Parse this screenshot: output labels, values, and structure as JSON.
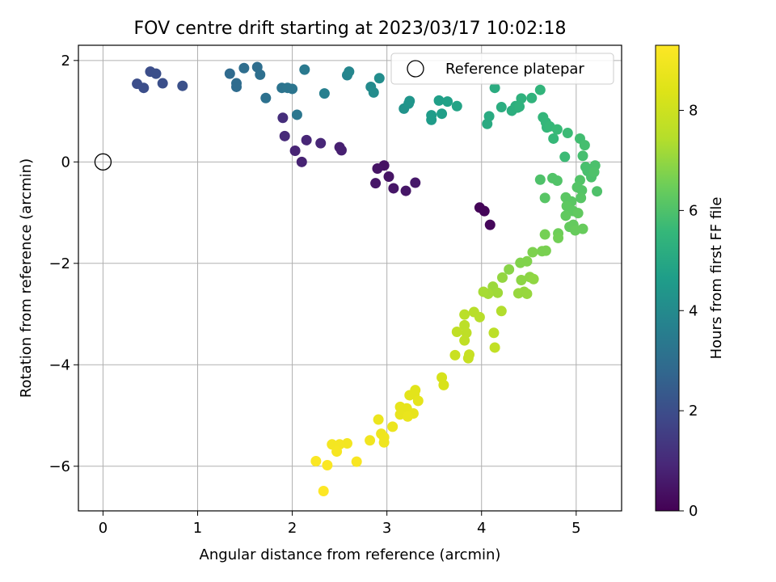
{
  "chart_data": {
    "type": "scatter",
    "title": "FOV centre drift starting at 2023/03/17 10:02:18",
    "xlabel": "Angular distance from reference (arcmin)",
    "ylabel": "Rotation from reference (arcmin)",
    "xlim": [
      -0.26,
      5.48
    ],
    "ylim": [
      -6.88,
      2.3
    ],
    "xticks": [
      0,
      1,
      2,
      3,
      4,
      5
    ],
    "yticks": [
      -6,
      -4,
      -2,
      0,
      2
    ],
    "grid": true,
    "legend": {
      "position": "top-right",
      "entries": [
        "Reference platepar"
      ]
    },
    "reference": {
      "x": 0,
      "y": 0
    },
    "colorbar": {
      "label": "Hours from first FF file",
      "range": [
        0,
        9.3
      ],
      "ticks": [
        0,
        2,
        4,
        6,
        8
      ],
      "colormap": "viridis"
    },
    "points": [
      {
        "x": 3.98,
        "y": -0.9,
        "h": 0.1
      },
      {
        "x": 4.03,
        "y": -0.97,
        "h": 0.1
      },
      {
        "x": 4.09,
        "y": -1.24,
        "h": 0.15
      },
      {
        "x": 2.97,
        "y": -0.07,
        "h": 0.4
      },
      {
        "x": 2.9,
        "y": -0.13,
        "h": 0.45
      },
      {
        "x": 3.02,
        "y": -0.29,
        "h": 0.45
      },
      {
        "x": 2.88,
        "y": -0.42,
        "h": 0.5
      },
      {
        "x": 3.07,
        "y": -0.52,
        "h": 0.5
      },
      {
        "x": 3.2,
        "y": -0.57,
        "h": 0.5
      },
      {
        "x": 3.3,
        "y": -0.41,
        "h": 0.55
      },
      {
        "x": 2.5,
        "y": 0.29,
        "h": 0.75
      },
      {
        "x": 2.52,
        "y": 0.23,
        "h": 0.75
      },
      {
        "x": 2.1,
        "y": 0.0,
        "h": 0.8
      },
      {
        "x": 2.03,
        "y": 0.22,
        "h": 0.85
      },
      {
        "x": 2.15,
        "y": 0.43,
        "h": 0.9
      },
      {
        "x": 2.3,
        "y": 0.37,
        "h": 0.9
      },
      {
        "x": 1.92,
        "y": 0.51,
        "h": 1.0
      },
      {
        "x": 1.9,
        "y": 0.87,
        "h": 1.1
      },
      {
        "x": 0.36,
        "y": 1.54,
        "h": 2.0
      },
      {
        "x": 0.43,
        "y": 1.46,
        "h": 2.0
      },
      {
        "x": 0.5,
        "y": 1.78,
        "h": 2.0
      },
      {
        "x": 0.56,
        "y": 1.74,
        "h": 2.05
      },
      {
        "x": 0.63,
        "y": 1.55,
        "h": 2.05
      },
      {
        "x": 0.84,
        "y": 1.5,
        "h": 2.1
      },
      {
        "x": 1.34,
        "y": 1.74,
        "h": 2.9
      },
      {
        "x": 1.41,
        "y": 1.55,
        "h": 2.95
      },
      {
        "x": 1.41,
        "y": 1.48,
        "h": 2.95
      },
      {
        "x": 1.49,
        "y": 1.85,
        "h": 3.0
      },
      {
        "x": 1.63,
        "y": 1.87,
        "h": 3.0
      },
      {
        "x": 1.66,
        "y": 1.72,
        "h": 3.05
      },
      {
        "x": 1.72,
        "y": 1.26,
        "h": 3.1
      },
      {
        "x": 1.89,
        "y": 1.46,
        "h": 3.2
      },
      {
        "x": 1.95,
        "y": 1.46,
        "h": 3.25
      },
      {
        "x": 2.0,
        "y": 1.44,
        "h": 3.25
      },
      {
        "x": 2.05,
        "y": 0.93,
        "h": 3.3
      },
      {
        "x": 2.13,
        "y": 1.82,
        "h": 3.4
      },
      {
        "x": 2.34,
        "y": 1.35,
        "h": 3.6
      },
      {
        "x": 2.58,
        "y": 1.71,
        "h": 3.8
      },
      {
        "x": 2.6,
        "y": 1.78,
        "h": 3.85
      },
      {
        "x": 2.83,
        "y": 1.48,
        "h": 4.0
      },
      {
        "x": 2.86,
        "y": 1.37,
        "h": 4.05
      },
      {
        "x": 2.92,
        "y": 1.65,
        "h": 4.1
      },
      {
        "x": 3.18,
        "y": 1.05,
        "h": 4.3
      },
      {
        "x": 3.23,
        "y": 1.15,
        "h": 4.35
      },
      {
        "x": 3.24,
        "y": 1.2,
        "h": 4.35
      },
      {
        "x": 3.47,
        "y": 0.83,
        "h": 4.6
      },
      {
        "x": 3.47,
        "y": 0.92,
        "h": 4.6
      },
      {
        "x": 3.55,
        "y": 1.21,
        "h": 4.7
      },
      {
        "x": 3.58,
        "y": 0.95,
        "h": 4.7
      },
      {
        "x": 3.64,
        "y": 1.19,
        "h": 4.75
      },
      {
        "x": 3.74,
        "y": 1.1,
        "h": 4.85
      },
      {
        "x": 4.06,
        "y": 0.75,
        "h": 5.1
      },
      {
        "x": 4.08,
        "y": 0.9,
        "h": 5.1
      },
      {
        "x": 4.14,
        "y": 1.46,
        "h": 5.15
      },
      {
        "x": 4.21,
        "y": 1.08,
        "h": 5.2
      },
      {
        "x": 4.32,
        "y": 1.01,
        "h": 5.25
      },
      {
        "x": 4.36,
        "y": 1.1,
        "h": 5.3
      },
      {
        "x": 4.38,
        "y": 1.07,
        "h": 5.3
      },
      {
        "x": 4.4,
        "y": 1.09,
        "h": 5.35
      },
      {
        "x": 4.42,
        "y": 1.25,
        "h": 5.35
      },
      {
        "x": 4.53,
        "y": 1.26,
        "h": 5.4
      },
      {
        "x": 4.62,
        "y": 1.42,
        "h": 5.45
      },
      {
        "x": 4.65,
        "y": 0.88,
        "h": 5.5
      },
      {
        "x": 4.68,
        "y": 0.78,
        "h": 5.55
      },
      {
        "x": 4.69,
        "y": 0.68,
        "h": 5.55
      },
      {
        "x": 4.72,
        "y": 0.7,
        "h": 5.6
      },
      {
        "x": 4.76,
        "y": 0.46,
        "h": 5.6
      },
      {
        "x": 4.8,
        "y": 0.64,
        "h": 5.65
      },
      {
        "x": 4.88,
        "y": 0.1,
        "h": 5.7
      },
      {
        "x": 4.91,
        "y": 0.57,
        "h": 5.7
      },
      {
        "x": 5.04,
        "y": 0.46,
        "h": 5.8
      },
      {
        "x": 5.09,
        "y": 0.33,
        "h": 5.85
      },
      {
        "x": 5.07,
        "y": 0.12,
        "h": 5.85
      },
      {
        "x": 5.1,
        "y": -0.1,
        "h": 5.9
      },
      {
        "x": 5.12,
        "y": -0.18,
        "h": 5.9
      },
      {
        "x": 5.16,
        "y": -0.3,
        "h": 5.95
      },
      {
        "x": 5.2,
        "y": -0.07,
        "h": 5.95
      },
      {
        "x": 5.19,
        "y": -0.2,
        "h": 6.0
      },
      {
        "x": 5.22,
        "y": -0.58,
        "h": 6.0
      },
      {
        "x": 5.04,
        "y": -0.36,
        "h": 6.05
      },
      {
        "x": 5.01,
        "y": -0.5,
        "h": 6.1
      },
      {
        "x": 5.06,
        "y": -0.56,
        "h": 6.1
      },
      {
        "x": 5.05,
        "y": -0.71,
        "h": 6.15
      },
      {
        "x": 4.95,
        "y": -0.78,
        "h": 6.2
      },
      {
        "x": 4.89,
        "y": -0.7,
        "h": 6.2
      },
      {
        "x": 4.9,
        "y": -0.87,
        "h": 6.25
      },
      {
        "x": 4.97,
        "y": -0.97,
        "h": 6.25
      },
      {
        "x": 5.02,
        "y": -1.01,
        "h": 6.3
      },
      {
        "x": 4.89,
        "y": -1.06,
        "h": 6.3
      },
      {
        "x": 4.97,
        "y": -1.24,
        "h": 6.35
      },
      {
        "x": 4.93,
        "y": -1.28,
        "h": 6.35
      },
      {
        "x": 4.99,
        "y": -1.35,
        "h": 6.4
      },
      {
        "x": 5.07,
        "y": -1.32,
        "h": 6.4
      },
      {
        "x": 4.62,
        "y": -0.35,
        "h": 6.0
      },
      {
        "x": 4.75,
        "y": -0.32,
        "h": 6.05
      },
      {
        "x": 4.8,
        "y": -0.37,
        "h": 6.05
      },
      {
        "x": 4.67,
        "y": -0.71,
        "h": 6.15
      },
      {
        "x": 4.81,
        "y": -1.41,
        "h": 6.5
      },
      {
        "x": 4.81,
        "y": -1.5,
        "h": 6.55
      },
      {
        "x": 4.67,
        "y": -1.43,
        "h": 6.6
      },
      {
        "x": 4.68,
        "y": -1.75,
        "h": 6.65
      },
      {
        "x": 4.64,
        "y": -1.76,
        "h": 6.65
      },
      {
        "x": 4.54,
        "y": -1.78,
        "h": 6.7
      },
      {
        "x": 4.48,
        "y": -1.96,
        "h": 6.75
      },
      {
        "x": 4.41,
        "y": -1.99,
        "h": 6.75
      },
      {
        "x": 4.29,
        "y": -2.12,
        "h": 6.85
      },
      {
        "x": 4.42,
        "y": -2.33,
        "h": 6.9
      },
      {
        "x": 4.51,
        "y": -2.27,
        "h": 6.9
      },
      {
        "x": 4.55,
        "y": -2.31,
        "h": 6.95
      },
      {
        "x": 4.22,
        "y": -2.28,
        "h": 7.0
      },
      {
        "x": 4.45,
        "y": -2.56,
        "h": 7.0
      },
      {
        "x": 4.39,
        "y": -2.59,
        "h": 7.05
      },
      {
        "x": 4.48,
        "y": -2.6,
        "h": 7.05
      },
      {
        "x": 4.12,
        "y": -2.46,
        "h": 7.1
      },
      {
        "x": 4.17,
        "y": -2.58,
        "h": 7.15
      },
      {
        "x": 4.07,
        "y": -2.6,
        "h": 7.2
      },
      {
        "x": 4.02,
        "y": -2.56,
        "h": 7.25
      },
      {
        "x": 4.21,
        "y": -2.94,
        "h": 7.4
      },
      {
        "x": 3.92,
        "y": -2.96,
        "h": 7.5
      },
      {
        "x": 3.98,
        "y": -3.06,
        "h": 7.5
      },
      {
        "x": 3.82,
        "y": -3.01,
        "h": 7.55
      },
      {
        "x": 3.82,
        "y": -3.22,
        "h": 7.6
      },
      {
        "x": 3.84,
        "y": -3.37,
        "h": 7.65
      },
      {
        "x": 3.74,
        "y": -3.35,
        "h": 7.7
      },
      {
        "x": 3.82,
        "y": -3.52,
        "h": 7.7
      },
      {
        "x": 4.13,
        "y": -3.37,
        "h": 7.6
      },
      {
        "x": 4.14,
        "y": -3.66,
        "h": 7.75
      },
      {
        "x": 3.87,
        "y": -3.8,
        "h": 7.85
      },
      {
        "x": 3.86,
        "y": -3.87,
        "h": 7.85
      },
      {
        "x": 3.72,
        "y": -3.81,
        "h": 7.9
      },
      {
        "x": 3.58,
        "y": -4.25,
        "h": 8.2
      },
      {
        "x": 3.6,
        "y": -4.4,
        "h": 8.25
      },
      {
        "x": 3.3,
        "y": -4.5,
        "h": 8.5
      },
      {
        "x": 3.24,
        "y": -4.6,
        "h": 8.55
      },
      {
        "x": 3.29,
        "y": -4.58,
        "h": 8.55
      },
      {
        "x": 3.33,
        "y": -4.71,
        "h": 8.6
      },
      {
        "x": 3.14,
        "y": -4.83,
        "h": 8.65
      },
      {
        "x": 3.21,
        "y": -4.86,
        "h": 8.65
      },
      {
        "x": 3.14,
        "y": -4.98,
        "h": 8.7
      },
      {
        "x": 3.28,
        "y": -4.96,
        "h": 8.7
      },
      {
        "x": 3.22,
        "y": -5.02,
        "h": 8.75
      },
      {
        "x": 3.06,
        "y": -5.22,
        "h": 8.8
      },
      {
        "x": 2.91,
        "y": -5.08,
        "h": 8.8
      },
      {
        "x": 2.94,
        "y": -5.36,
        "h": 8.85
      },
      {
        "x": 2.97,
        "y": -5.43,
        "h": 8.9
      },
      {
        "x": 2.97,
        "y": -5.53,
        "h": 8.9
      },
      {
        "x": 2.82,
        "y": -5.49,
        "h": 8.95
      },
      {
        "x": 2.58,
        "y": -5.55,
        "h": 9.0
      },
      {
        "x": 2.42,
        "y": -5.57,
        "h": 9.05
      },
      {
        "x": 2.5,
        "y": -5.57,
        "h": 9.05
      },
      {
        "x": 2.47,
        "y": -5.71,
        "h": 9.1
      },
      {
        "x": 2.68,
        "y": -5.91,
        "h": 9.15
      },
      {
        "x": 2.25,
        "y": -5.9,
        "h": 9.2
      },
      {
        "x": 2.37,
        "y": -5.98,
        "h": 9.2
      },
      {
        "x": 2.33,
        "y": -6.49,
        "h": 9.3
      }
    ]
  }
}
